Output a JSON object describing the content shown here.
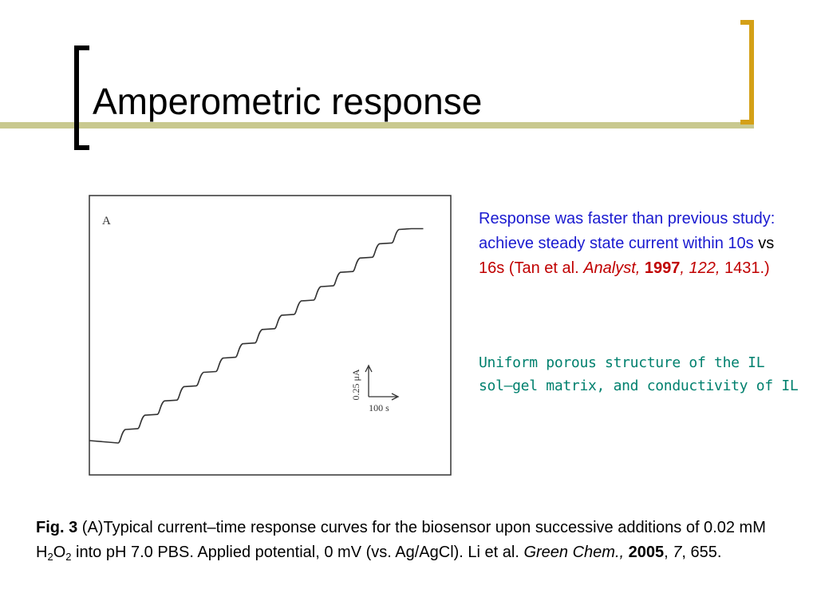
{
  "header": {
    "title": "Amperometric response"
  },
  "figure": {
    "panel_label": "A",
    "scale_current": "0.25 μA",
    "scale_time": "100 s"
  },
  "note1": [
    "Response was faster than previous study: achieve steady state current within 10s",
    " vs ",
    "16s",
    " (Tan et al. ",
    "Analyst,",
    " ",
    "1997",
    ", 122,",
    " 1431.)"
  ],
  "note2": "Uniform porous structure of the IL sol–gel matrix, and conductivity of IL",
  "caption": [
    "Fig. 3",
    " (A)Typical current–time response curves for the biosensor upon successive additions of 0.02 mM H",
    "2",
    "O",
    "2",
    " into pH 7.0 PBS. Applied potential, 0 mV (vs. Ag/AgCl). Li et al. ",
    "Green Chem.,",
    " ",
    "2005",
    ", ",
    "7",
    ", 655."
  ]
}
